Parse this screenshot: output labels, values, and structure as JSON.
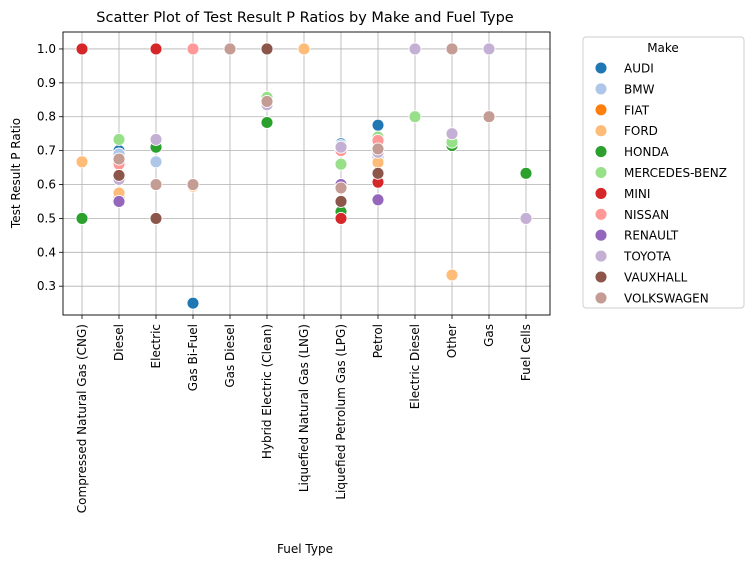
{
  "chart_data": {
    "type": "scatter",
    "title": "Scatter Plot of Test Result P Ratios by Make and Fuel Type",
    "xlabel": "Fuel Type",
    "ylabel": "Test Result P Ratio",
    "categories": [
      "Compressed Natural Gas (CNG)",
      "Diesel",
      "Electric",
      "Gas Bi-Fuel",
      "Gas Diesel",
      "Hybrid Electric (Clean)",
      "Liquefied Natural Gas (LNG)",
      "Liquefied Petrolum Gas (LPG)",
      "Petrol",
      "Electric Diesel",
      "Other",
      "Gas",
      "Fuel Cells"
    ],
    "y_ticks": [
      "0.3",
      "0.4",
      "0.5",
      "0.6",
      "0.7",
      "0.8",
      "0.9",
      "1.0"
    ],
    "ylim": [
      0.215,
      1.05
    ],
    "grid": true,
    "legend": {
      "title": "Make",
      "position": "outside-right"
    },
    "series": [
      {
        "name": "AUDI",
        "color": "#1f77b4",
        "points": [
          [
            "Diesel",
            0.7
          ],
          [
            "Gas Bi-Fuel",
            0.25
          ],
          [
            "Liquefied Petrolum Gas (LPG)",
            0.72
          ],
          [
            "Petrol",
            0.775
          ]
        ]
      },
      {
        "name": "BMW",
        "color": "#aec7e8",
        "points": [
          [
            "Diesel",
            0.69
          ],
          [
            "Electric",
            0.667
          ],
          [
            "Liquefied Petrolum Gas (LPG)",
            0.715
          ],
          [
            "Petrol",
            0.68
          ]
        ]
      },
      {
        "name": "FIAT",
        "color": "#ff7f0e",
        "points": [
          [
            "Diesel",
            0.565
          ]
        ]
      },
      {
        "name": "FORD",
        "color": "#ffbb78",
        "points": [
          [
            "Compressed Natural Gas (CNG)",
            0.667
          ],
          [
            "Diesel",
            0.575
          ],
          [
            "Gas Bi-Fuel",
            0.595
          ],
          [
            "Liquefied Natural Gas (LNG)",
            1.0
          ],
          [
            "Petrol",
            0.665
          ],
          [
            "Other",
            0.333
          ]
        ]
      },
      {
        "name": "HONDA",
        "color": "#2ca02c",
        "points": [
          [
            "Compressed Natural Gas (CNG)",
            0.5
          ],
          [
            "Electric",
            0.71
          ],
          [
            "Hybrid Electric (Clean)",
            0.783
          ],
          [
            "Liquefied Petrolum Gas (LPG)",
            0.52
          ],
          [
            "Petrol",
            0.725
          ],
          [
            "Other",
            0.715
          ],
          [
            "Fuel Cells",
            0.633
          ]
        ]
      },
      {
        "name": "MERCEDES-BENZ",
        "color": "#98df8a",
        "points": [
          [
            "Diesel",
            0.733
          ],
          [
            "Hybrid Electric (Clean)",
            0.857
          ],
          [
            "Liquefied Petrolum Gas (LPG)",
            0.66
          ],
          [
            "Petrol",
            0.74
          ],
          [
            "Electric Diesel",
            0.8
          ],
          [
            "Other",
            0.725
          ]
        ]
      },
      {
        "name": "MINI",
        "color": "#d62728",
        "points": [
          [
            "Compressed Natural Gas (CNG)",
            1.0
          ],
          [
            "Electric",
            1.0
          ],
          [
            "Liquefied Petrolum Gas (LPG)",
            0.5
          ],
          [
            "Petrol",
            0.607
          ]
        ]
      },
      {
        "name": "NISSAN",
        "color": "#ff9896",
        "points": [
          [
            "Diesel",
            0.66
          ],
          [
            "Gas Bi-Fuel",
            1.0
          ],
          [
            "Liquefied Petrolum Gas (LPG)",
            0.7
          ],
          [
            "Petrol",
            0.73
          ]
        ]
      },
      {
        "name": "RENAULT",
        "color": "#9467bd",
        "points": [
          [
            "Diesel",
            0.55
          ],
          [
            "Liquefied Petrolum Gas (LPG)",
            0.6
          ],
          [
            "Petrol",
            0.555
          ]
        ]
      },
      {
        "name": "TOYOTA",
        "color": "#c5b0d5",
        "points": [
          [
            "Diesel",
            0.615
          ],
          [
            "Electric",
            0.733
          ],
          [
            "Hybrid Electric (Clean)",
            0.835
          ],
          [
            "Liquefied Petrolum Gas (LPG)",
            0.71
          ],
          [
            "Petrol",
            0.695
          ],
          [
            "Electric Diesel",
            1.0
          ],
          [
            "Other",
            0.75
          ],
          [
            "Gas",
            1.0
          ],
          [
            "Fuel Cells",
            0.5
          ]
        ]
      },
      {
        "name": "VAUXHALL",
        "color": "#8c564b",
        "points": [
          [
            "Diesel",
            0.627
          ],
          [
            "Electric",
            0.5
          ],
          [
            "Hybrid Electric (Clean)",
            1.0
          ],
          [
            "Liquefied Petrolum Gas (LPG)",
            0.55
          ],
          [
            "Petrol",
            0.633
          ]
        ]
      },
      {
        "name": "VOLKSWAGEN",
        "color": "#c49c94",
        "points": [
          [
            "Diesel",
            0.675
          ],
          [
            "Electric",
            0.6
          ],
          [
            "Gas Bi-Fuel",
            0.6
          ],
          [
            "Gas Diesel",
            1.0
          ],
          [
            "Hybrid Electric (Clean)",
            0.845
          ],
          [
            "Liquefied Petrolum Gas (LPG)",
            0.59
          ],
          [
            "Petrol",
            0.705
          ],
          [
            "Other",
            1.0
          ],
          [
            "Gas",
            0.8
          ]
        ]
      }
    ]
  }
}
